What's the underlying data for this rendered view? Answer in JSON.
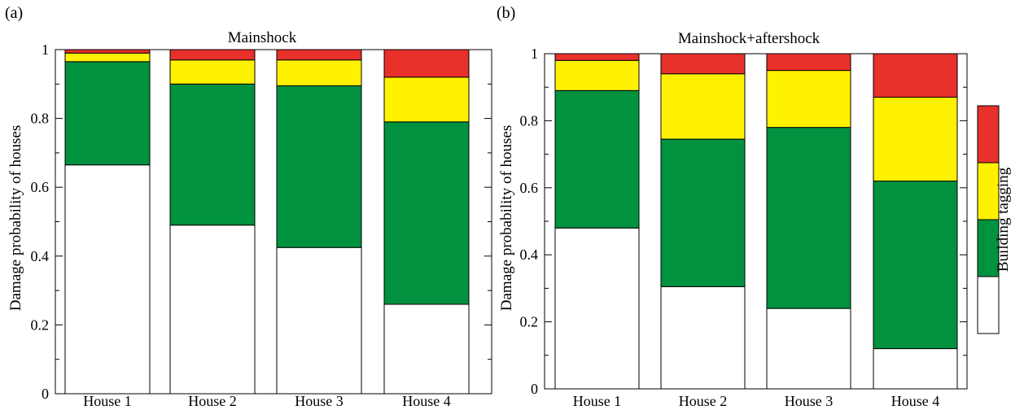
{
  "chart_data": [
    {
      "type": "bar",
      "stacked": true,
      "panel_label": "(a)",
      "title": "Mainshock",
      "xlabel": "",
      "ylabel": "Damage probability of houses",
      "ylim": [
        0,
        1
      ],
      "yticks": [
        "0",
        "0.2",
        "0.4",
        "0.6",
        "0.8",
        "1"
      ],
      "categories": [
        "House 1",
        "House 2",
        "House 3",
        "House 4"
      ],
      "series": [
        {
          "color": "#ffffff",
          "values": [
            0.665,
            0.49,
            0.425,
            0.26
          ]
        },
        {
          "color": "#00923f",
          "values": [
            0.3,
            0.41,
            0.47,
            0.53
          ]
        },
        {
          "color": "#fff200",
          "values": [
            0.025,
            0.07,
            0.075,
            0.13
          ]
        },
        {
          "color": "#e8312a",
          "values": [
            0.01,
            0.03,
            0.03,
            0.08
          ]
        }
      ]
    },
    {
      "type": "bar",
      "stacked": true,
      "panel_label": "(b)",
      "title": "Mainshock+aftershock",
      "xlabel": "",
      "ylabel": "Damage probability of houses",
      "ylim": [
        0,
        1
      ],
      "yticks": [
        "0",
        "0.2",
        "0.4",
        "0.6",
        "0.8",
        "1"
      ],
      "categories": [
        "House 1",
        "House 2",
        "House 3",
        "House 4"
      ],
      "series": [
        {
          "color": "#ffffff",
          "values": [
            0.48,
            0.305,
            0.24,
            0.12
          ]
        },
        {
          "color": "#00923f",
          "values": [
            0.41,
            0.44,
            0.54,
            0.5
          ]
        },
        {
          "color": "#fff200",
          "values": [
            0.09,
            0.195,
            0.17,
            0.25
          ]
        },
        {
          "color": "#e8312a",
          "values": [
            0.02,
            0.06,
            0.05,
            0.13
          ]
        }
      ]
    }
  ],
  "colorbar": {
    "label": "Building tagging",
    "colors": [
      "#ffffff",
      "#00923f",
      "#fff200",
      "#e8312a"
    ]
  }
}
